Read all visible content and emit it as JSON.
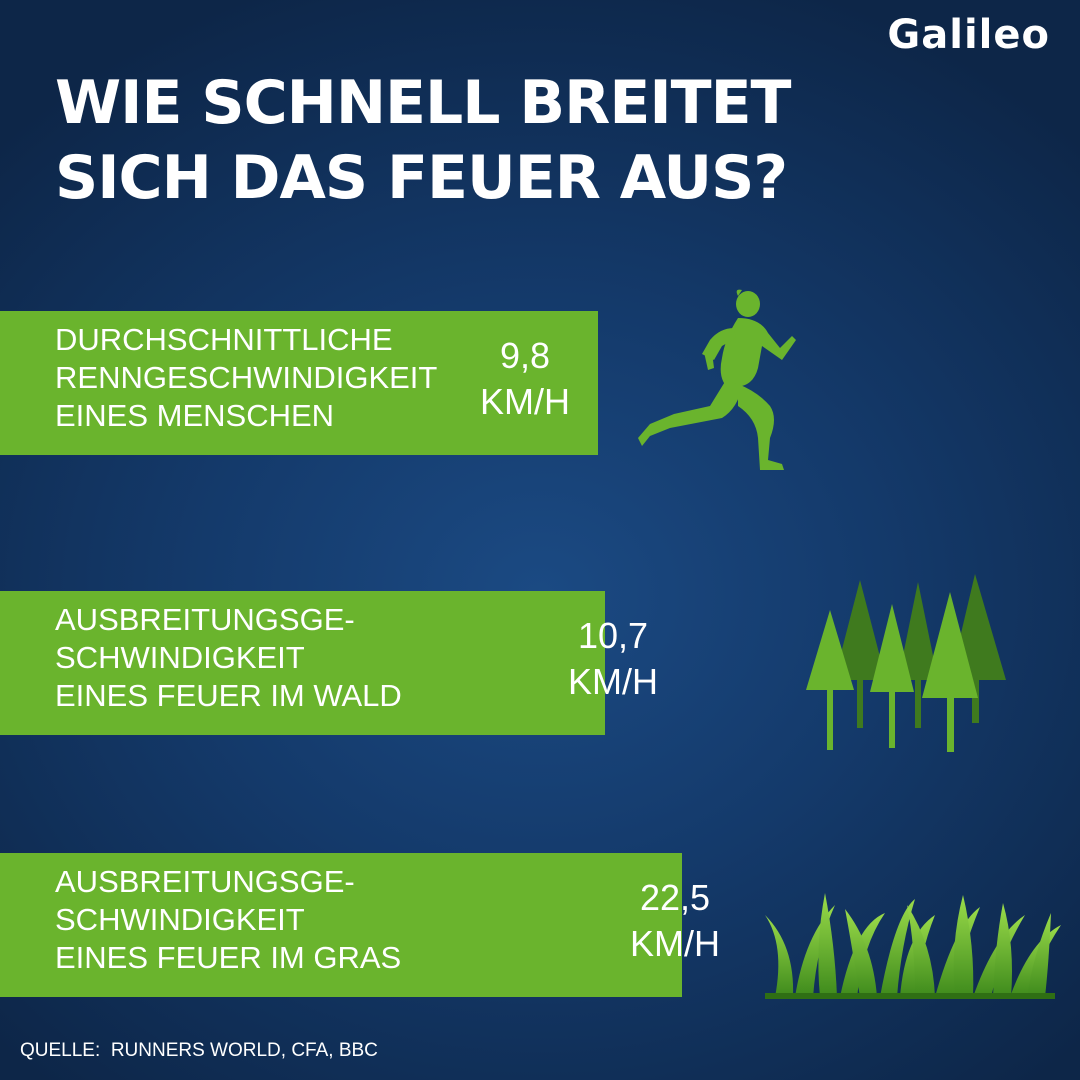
{
  "logo": "Galileo",
  "title": {
    "line1": "WIE SCHNELL BREITET",
    "line2": "SICH DAS FEUER AUS?"
  },
  "accent_color": "#6ab42d",
  "chart_data": {
    "type": "bar",
    "orientation": "horizontal",
    "unit": "KM/H",
    "categories": [
      "DURCHSCHNITTLICHE RENNGESCHWINDIGKEIT EINES MENSCHEN",
      "AUSBREITUNGSGE-SCHWINDIGKEIT EINES FEUER IM WALD",
      "AUSBREITUNGSGE-SCHWINDIGKEIT EINES FEUER IM GRAS"
    ],
    "values": [
      9.8,
      10.7,
      22.5
    ],
    "bars": [
      {
        "label_lines": [
          "DURCHSCHNITTLICHE",
          "RENNGESCHWINDIGKEIT",
          "EINES MENSCHEN"
        ],
        "value": "9,8",
        "unit": "KM/H",
        "icon": "runner-icon"
      },
      {
        "label_lines": [
          "AUSBREITUNGSGE-",
          "SCHWINDIGKEIT",
          "EINES FEUER IM WALD"
        ],
        "value": "10,7",
        "unit": "KM/H",
        "icon": "forest-icon"
      },
      {
        "label_lines": [
          "AUSBREITUNGSGE-",
          "SCHWINDIGKEIT",
          "EINES FEUER IM GRAS"
        ],
        "value": "22,5",
        "unit": "KM/H",
        "icon": "grass-icon"
      }
    ]
  },
  "source": "QUELLE:  RUNNERS WORLD, CFA, BBC"
}
